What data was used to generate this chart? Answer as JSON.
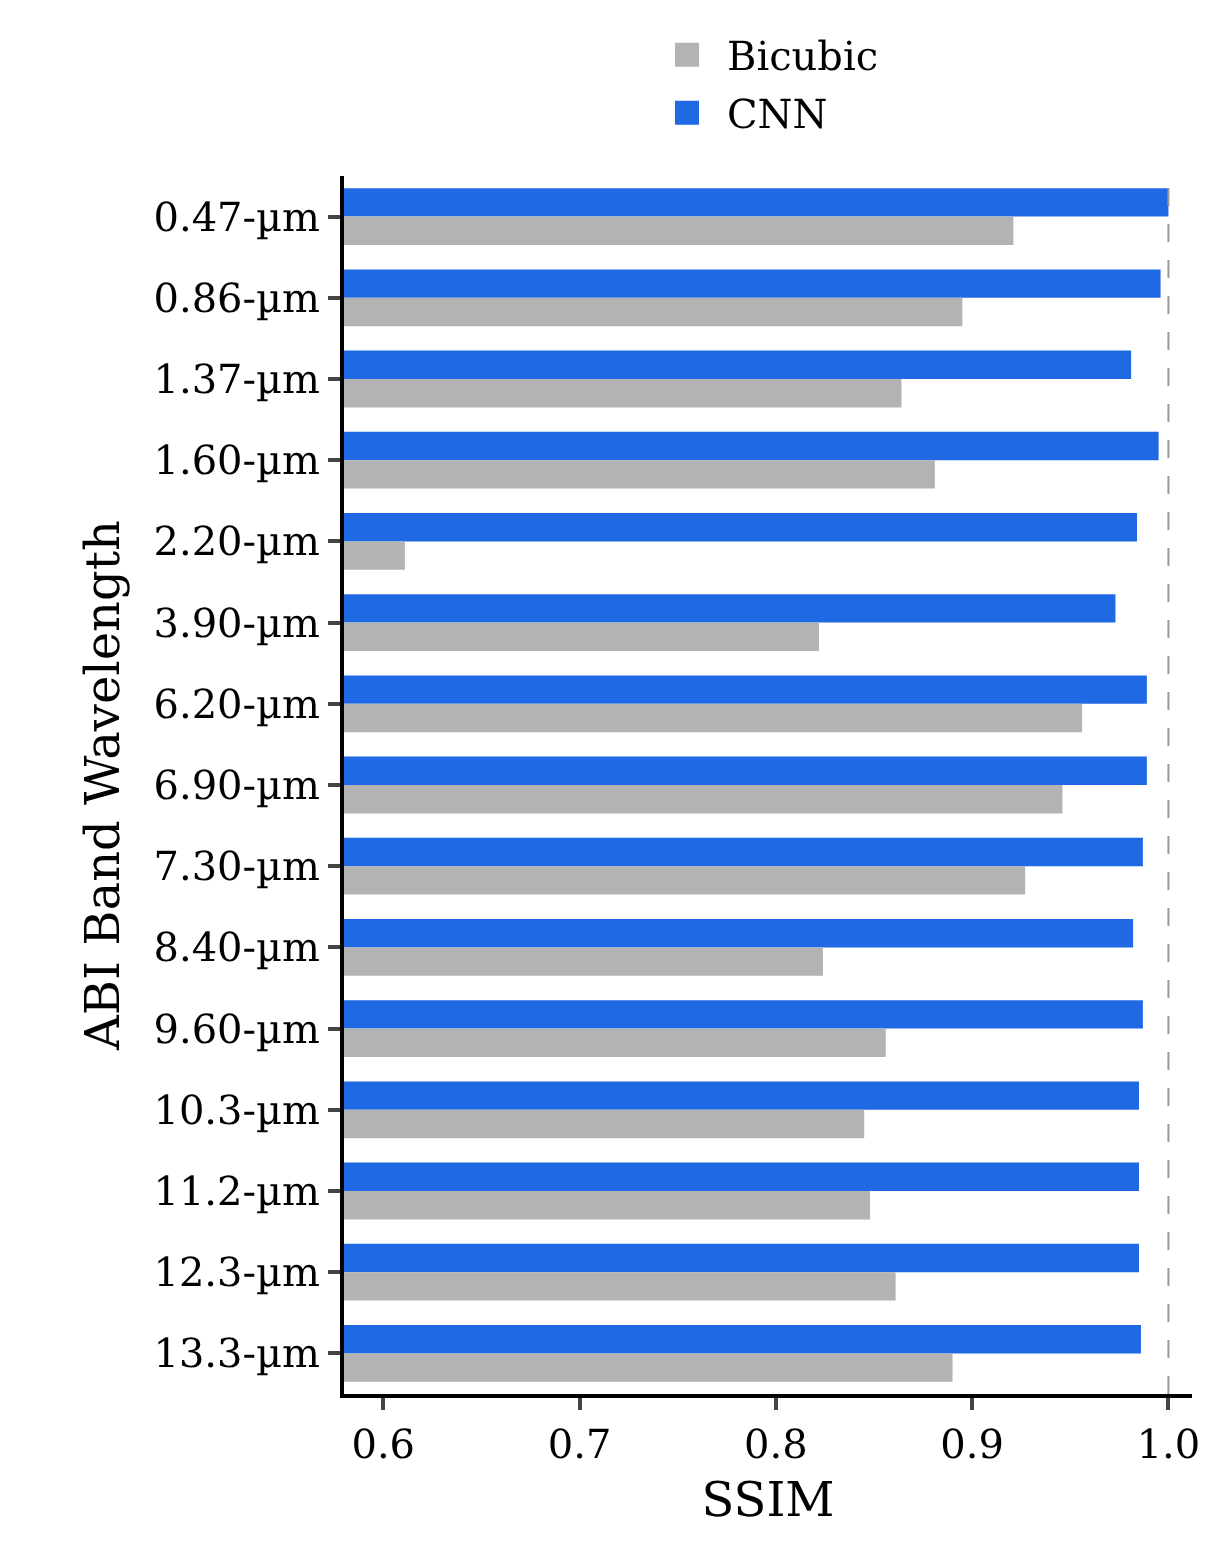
{
  "chart_data": {
    "type": "bar",
    "orientation": "horizontal",
    "xlabel": "SSIM",
    "ylabel": "ABI Band Wavelength",
    "categories": [
      "0.47-µm",
      "0.86-µm",
      "1.37-µm",
      "1.60-µm",
      "2.20-µm",
      "3.90-µm",
      "6.20-µm",
      "6.90-µm",
      "7.30-µm",
      "8.40-µm",
      "9.60-µm",
      "10.3-µm",
      "11.2-µm",
      "12.3-µm",
      "13.3-µm"
    ],
    "series": [
      {
        "name": "Bicubic",
        "color": "#b3b3b3",
        "values": [
          0.921,
          0.895,
          0.864,
          0.881,
          0.611,
          0.822,
          0.956,
          0.946,
          0.927,
          0.824,
          0.856,
          0.845,
          0.848,
          0.861,
          0.89
        ]
      },
      {
        "name": "CNN",
        "color": "#1f6ae4",
        "values": [
          1.0,
          0.996,
          0.981,
          0.995,
          0.984,
          0.973,
          0.989,
          0.989,
          0.987,
          0.982,
          0.987,
          0.985,
          0.985,
          0.985,
          0.986
        ]
      }
    ],
    "xlim": [
      0.58,
      1.012
    ],
    "xticks": [
      {
        "value": 0.6,
        "label": "0.6"
      },
      {
        "value": 0.7,
        "label": "0.7"
      },
      {
        "value": 0.8,
        "label": "0.8"
      },
      {
        "value": 0.9,
        "label": "0.9"
      },
      {
        "value": 1.0,
        "label": "1.0"
      }
    ],
    "ref_lines": [
      {
        "axis": "x",
        "value": 1.0,
        "color": "#999999",
        "line_style": "dashed"
      }
    ],
    "grid": false,
    "legend": "top"
  }
}
